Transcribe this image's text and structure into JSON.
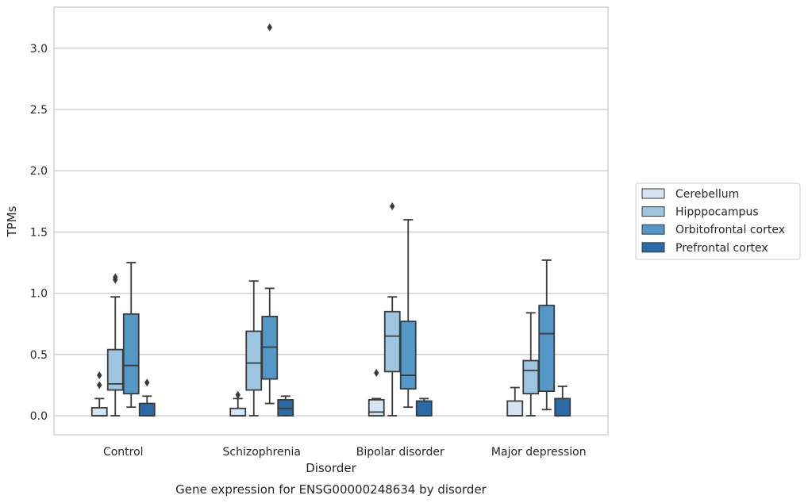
{
  "chart_data": {
    "type": "box",
    "xlabel": "Disorder",
    "ylabel": "TPMs",
    "caption": "Gene expression for ENSG00000248634 by disorder",
    "ylim": [
      -0.15,
      3.33
    ],
    "yticks": [
      "0.0",
      "0.5",
      "1.0",
      "1.5",
      "2.0",
      "2.5",
      "3.0"
    ],
    "ytick_values": [
      0.0,
      0.5,
      1.0,
      1.5,
      2.0,
      2.5,
      3.0
    ],
    "grid": "horizontal",
    "legend_position": "right",
    "categories": [
      "Control",
      "Schizophrenia",
      "Bipolar disorder",
      "Major depression"
    ],
    "series": [
      {
        "name": "Cerebellum",
        "color": "#d4e4f2",
        "boxes": [
          {
            "min": 0.0,
            "q1": 0.0,
            "median": 0.0,
            "q3": 0.065,
            "max": 0.14,
            "outliers": [
              0.25,
              0.33
            ]
          },
          {
            "min": 0.0,
            "q1": 0.0,
            "median": 0.0,
            "q3": 0.06,
            "max": 0.14,
            "outliers": [
              0.17
            ]
          },
          {
            "min": 0.0,
            "q1": 0.0,
            "median": 0.03,
            "q3": 0.13,
            "max": 0.14,
            "outliers": [
              0.35
            ]
          },
          {
            "min": 0.0,
            "q1": 0.0,
            "median": 0.0,
            "q3": 0.12,
            "max": 0.23,
            "outliers": []
          }
        ]
      },
      {
        "name": "Hipppocampus",
        "color": "#9dc5df",
        "boxes": [
          {
            "min": 0.0,
            "q1": 0.21,
            "median": 0.26,
            "q3": 0.54,
            "max": 0.97,
            "outliers": [
              1.11,
              1.13
            ]
          },
          {
            "min": 0.0,
            "q1": 0.21,
            "median": 0.43,
            "q3": 0.69,
            "max": 1.1,
            "outliers": []
          },
          {
            "min": 0.0,
            "q1": 0.36,
            "median": 0.65,
            "q3": 0.85,
            "max": 0.97,
            "outliers": [
              1.71
            ]
          },
          {
            "min": 0.0,
            "q1": 0.18,
            "median": 0.37,
            "q3": 0.45,
            "max": 0.84,
            "outliers": []
          }
        ]
      },
      {
        "name": "Orbitofrontal cortex",
        "color": "#5597c6",
        "boxes": [
          {
            "min": 0.07,
            "q1": 0.18,
            "median": 0.41,
            "q3": 0.83,
            "max": 1.25,
            "outliers": []
          },
          {
            "min": 0.1,
            "q1": 0.3,
            "median": 0.56,
            "q3": 0.81,
            "max": 1.04,
            "outliers": [
              3.17
            ]
          },
          {
            "min": 0.07,
            "q1": 0.22,
            "median": 0.33,
            "q3": 0.77,
            "max": 1.6,
            "outliers": []
          },
          {
            "min": 0.05,
            "q1": 0.2,
            "median": 0.67,
            "q3": 0.9,
            "max": 1.27,
            "outliers": []
          }
        ]
      },
      {
        "name": "Prefrontal cortex",
        "color": "#2a6aa8",
        "boxes": [
          {
            "min": 0.0,
            "q1": 0.0,
            "median": 0.0,
            "q3": 0.1,
            "max": 0.16,
            "outliers": [
              0.27
            ]
          },
          {
            "min": 0.0,
            "q1": 0.0,
            "median": 0.06,
            "q3": 0.13,
            "max": 0.16,
            "outliers": []
          },
          {
            "min": 0.0,
            "q1": 0.0,
            "median": 0.0,
            "q3": 0.12,
            "max": 0.14,
            "outliers": []
          },
          {
            "min": 0.0,
            "q1": 0.0,
            "median": 0.0,
            "q3": 0.14,
            "max": 0.24,
            "outliers": []
          }
        ]
      }
    ]
  }
}
